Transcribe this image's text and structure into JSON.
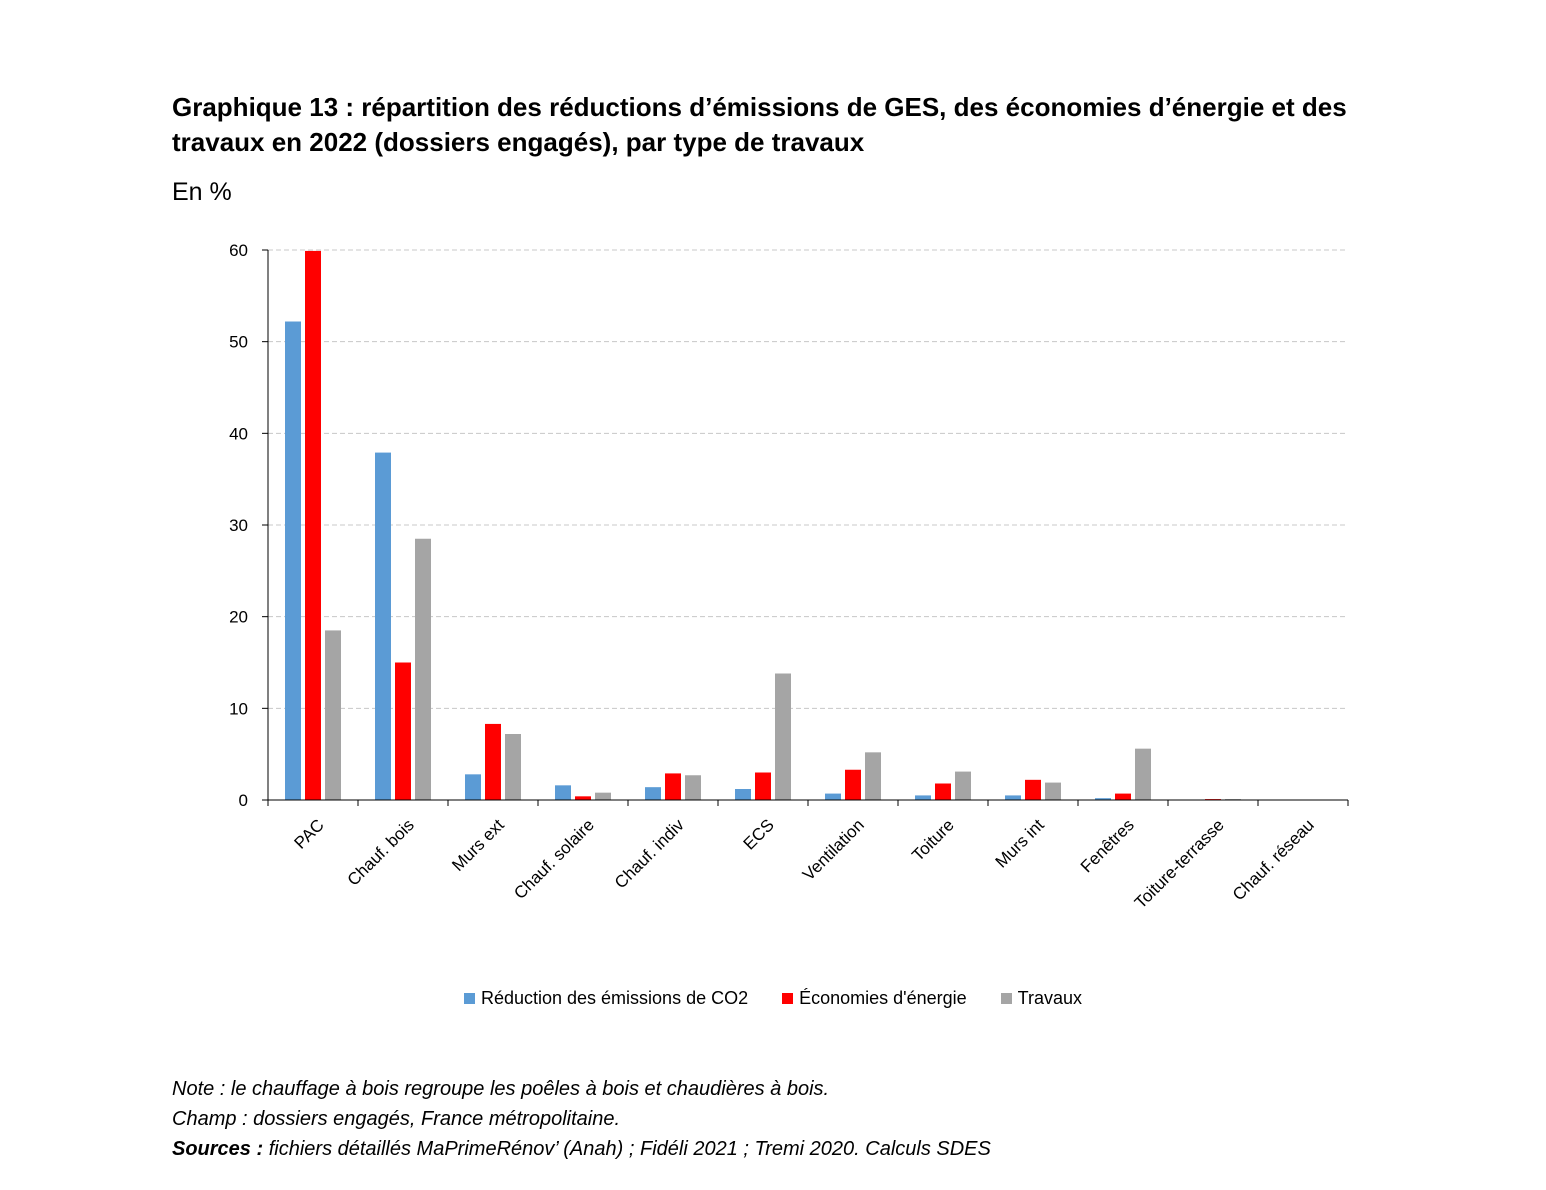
{
  "title": "Graphique 13 : répartition des réductions d’émissions de GES, des économies d’énergie et des travaux en 2022 (dossiers engagés), par type de travaux",
  "unit_label": "En %",
  "colors": {
    "co2": "#5b9bd5",
    "energie": "#ff0000",
    "travaux": "#a5a5a5"
  },
  "chart_data": {
    "type": "bar",
    "title": "Graphique 13 : répartition des réductions d’émissions de GES, des économies d’énergie et des travaux en 2022 (dossiers engagés), par type de travaux",
    "ylabel": "En %",
    "ylim": [
      0,
      60
    ],
    "yticks": [
      0,
      10,
      20,
      30,
      40,
      50,
      60
    ],
    "grid": true,
    "legend_position": "bottom",
    "categories": [
      "PAC",
      "Chauf. bois",
      "Murs ext",
      "Chauf. solaire",
      "Chauf. indiv",
      "ECS",
      "Ventilation",
      "Toiture",
      "Murs int",
      "Fenêtres",
      "Toiture-terrasse",
      "Chauf. réseau"
    ],
    "series": [
      {
        "name": "Réduction des émissions de CO2",
        "values": [
          52.2,
          37.9,
          2.8,
          1.6,
          1.4,
          1.2,
          0.7,
          0.5,
          0.5,
          0.2,
          0.0,
          0.0
        ]
      },
      {
        "name": "Économies d'énergie",
        "values": [
          59.9,
          15.0,
          8.3,
          0.4,
          2.9,
          3.0,
          3.3,
          1.8,
          2.2,
          0.7,
          0.1,
          0.0
        ]
      },
      {
        "name": "Travaux",
        "values": [
          18.5,
          28.5,
          7.2,
          0.8,
          2.7,
          13.8,
          5.2,
          3.1,
          1.9,
          5.6,
          0.1,
          0.0
        ]
      }
    ]
  },
  "notes": {
    "note": "Note : le chauffage à bois regroupe les poêles à bois et chaudières à bois.",
    "champ": "Champ : dossiers engagés, France métropolitaine.",
    "sources_label": "Sources :",
    "sources_text": " fichiers détaillés MaPrimeRénov’ (Anah) ; Fidéli 2021 ; Tremi 2020. Calculs SDES"
  }
}
